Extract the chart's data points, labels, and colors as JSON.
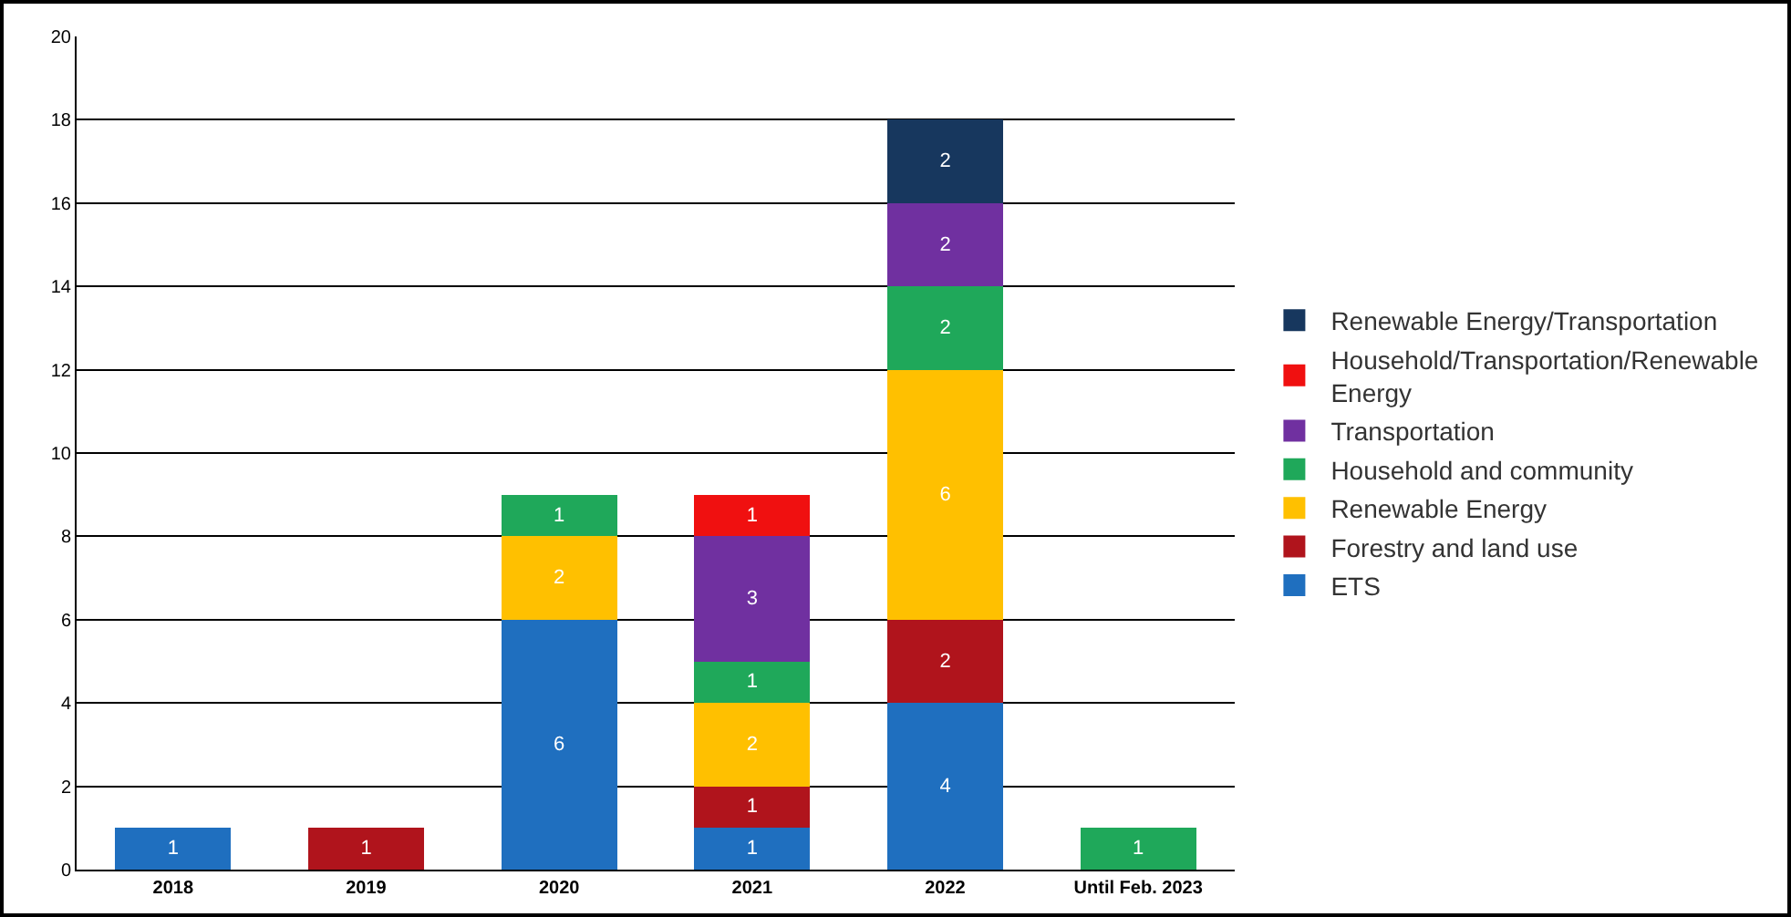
{
  "chart_data": {
    "type": "bar",
    "stacked": true,
    "categories": [
      "2018",
      "2019",
      "2020",
      "2021",
      "2022",
      "Until Feb. 2023"
    ],
    "series": [
      {
        "name": "ETS",
        "color": "#1f6fbf",
        "values": [
          1,
          null,
          6,
          1,
          4,
          null
        ]
      },
      {
        "name": "Forestry and land use",
        "color": "#b0141c",
        "values": [
          null,
          1,
          null,
          1,
          2,
          null
        ]
      },
      {
        "name": "Renewable Energy",
        "color": "#ffc000",
        "values": [
          null,
          null,
          2,
          2,
          6,
          null
        ]
      },
      {
        "name": "Household and community",
        "color": "#1fa85a",
        "values": [
          null,
          null,
          1,
          1,
          2,
          1
        ]
      },
      {
        "name": "Transportation",
        "color": "#7030a0",
        "values": [
          null,
          null,
          null,
          3,
          2,
          null
        ]
      },
      {
        "name": "Household/Transportation/Renewable Energy",
        "color": "#f01010",
        "values": [
          null,
          null,
          null,
          1,
          null,
          null
        ]
      },
      {
        "name": "Renewable Energy/Transportation",
        "color": "#17375e",
        "values": [
          null,
          null,
          null,
          null,
          2,
          null
        ]
      }
    ],
    "ylim": [
      0,
      20
    ],
    "yticks": [
      0,
      2,
      4,
      6,
      8,
      10,
      12,
      14,
      16,
      18,
      20
    ],
    "grid": "y",
    "legend": "right",
    "data_labels": true
  }
}
